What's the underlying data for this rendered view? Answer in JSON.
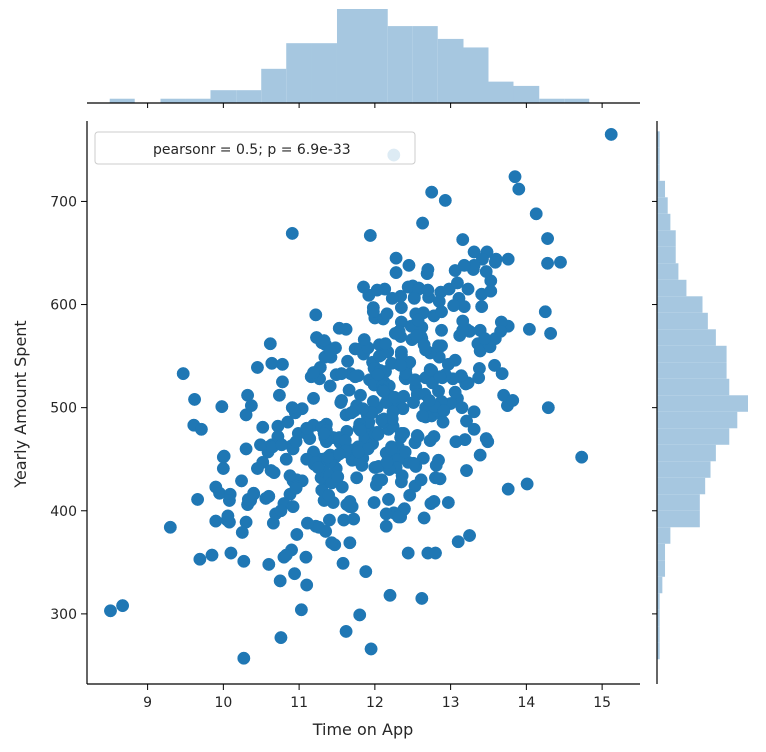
{
  "chart_data": {
    "type": "scatter",
    "xlabel": "Time on App",
    "ylabel": "Yearly Amount Spent",
    "xlim": [
      8.2,
      15.5
    ],
    "ylim": [
      232,
      778
    ],
    "x_ticks": [
      9,
      10,
      11,
      12,
      13,
      14,
      15
    ],
    "y_ticks": [
      300,
      400,
      500,
      600,
      700
    ],
    "legend": {
      "text": "pearsonr = 0.5; p = 6.9e-33",
      "position": "upper-left"
    },
    "grid": false,
    "colors": {
      "points": "#1f77b4",
      "hist": "#a6c7e0",
      "axis": "#000000"
    },
    "points": {
      "x": [
        8.51,
        8.67,
        9.3,
        9.47,
        9.62,
        9.85,
        9.9,
        10.0,
        10.08,
        10.1,
        10.27,
        10.32,
        10.45,
        10.76,
        10.91,
        10.94,
        11.03,
        15.12,
        12.25,
        12.75,
        12.93,
        13.85,
        13.9,
        14.13,
        14.28,
        14.45,
        14.29,
        14.73,
        14.01,
        12.7,
        11.1,
        12.44,
        12.8,
        13.1,
        13.25,
        11.62,
        11.8,
        11.95,
        12.2,
        11.35,
        11.58,
        11.88,
        12.38,
        12.62,
        12.15,
        10.75,
        10.88,
        11.2,
        9.95,
        10.3,
        10.52,
        10.6,
        11.45
      ],
      "y": [
        303,
        308,
        384,
        533,
        508,
        357,
        423,
        452,
        389,
        359,
        257,
        512,
        539,
        277,
        669,
        339,
        304,
        765,
        745,
        709,
        701,
        724,
        712,
        688,
        664,
        641,
        500,
        452,
        426,
        359,
        328,
        359,
        359,
        370,
        376,
        283,
        299,
        266,
        318,
        380,
        349,
        341,
        401,
        315,
        385,
        332,
        416,
        445,
        417,
        493,
        447,
        462,
        471
      ]
    },
    "scatter_cloud_note": null,
    "x_hist": {
      "bin_edges": [
        8.5,
        8.83,
        9.17,
        9.5,
        9.83,
        10.17,
        10.5,
        10.83,
        11.17,
        11.5,
        11.83,
        12.17,
        12.5,
        12.83,
        13.17,
        13.5,
        13.83,
        14.17,
        14.5,
        14.83,
        15.17
      ],
      "counts": [
        1,
        0,
        1,
        1,
        3,
        3,
        8,
        14,
        14,
        22,
        22,
        18,
        18,
        15,
        13,
        5,
        4,
        1,
        1,
        0
      ]
    },
    "y_hist": {
      "bin_edges": [
        256,
        272,
        288,
        304,
        320,
        336,
        352,
        368,
        384,
        400,
        416,
        432,
        448,
        464,
        480,
        496,
        512,
        528,
        544,
        560,
        576,
        592,
        608,
        624,
        640,
        656,
        672,
        688,
        704,
        720,
        736,
        752,
        768
      ],
      "counts": [
        1,
        1,
        1,
        1,
        2,
        3,
        3,
        5,
        16,
        16,
        18,
        20,
        22,
        27,
        30,
        34,
        27,
        26,
        26,
        22,
        19,
        17,
        11,
        8,
        7,
        7,
        5,
        4,
        3,
        1,
        1,
        1
      ]
    }
  }
}
